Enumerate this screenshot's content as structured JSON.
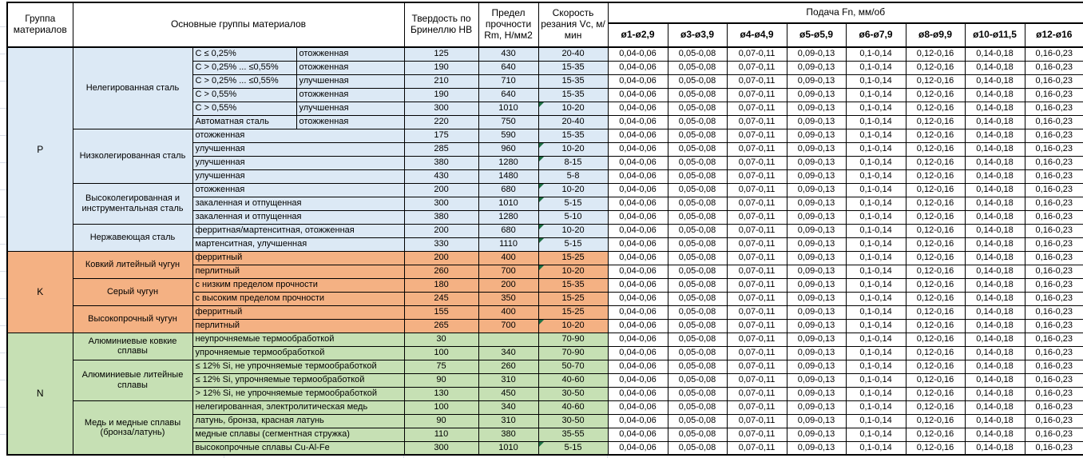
{
  "header": {
    "col_group": "Группа материалов",
    "col_main": "Основные группы материалов",
    "col_hb": "Твердость по Бринеллю НВ",
    "col_rm": "Предел прочности Rm, Н/мм2",
    "col_vc": "Скорость резания Vc, м/мин",
    "feed_title": "Подача Fn, мм/об",
    "feed_cols": [
      "ø1-ø2,9",
      "ø3-ø3,9",
      "ø4-ø4,9",
      "ø5-ø5,9",
      "ø6-ø7,9",
      "ø8-ø9,9",
      "ø10-ø11,5",
      "ø12-ø16"
    ]
  },
  "feed_values": [
    "0,04-0,06",
    "0,05-0,08",
    "0,07-0,11",
    "0,09-0,13",
    "0,1-0,14",
    "0,12-0,16",
    "0,14-0,18",
    "0,16-0,23"
  ],
  "colors": {
    "group_p": "#dce9f5",
    "group_k": "#f4b183",
    "group_n": "#c6e0b4",
    "marker_green": "#1e7145"
  },
  "groups": [
    {
      "letter": "P",
      "subgroups": [
        {
          "name": "Нелегированная сталь",
          "rows": [
            {
              "desc_a": "С ≤ 0,25%",
              "desc_b": "отожженная",
              "hb": "125",
              "rm": "430",
              "vc": "20-40",
              "marker": false
            },
            {
              "desc_a": "С > 0,25% ... ≤0,55%",
              "desc_b": "отожженная",
              "hb": "190",
              "rm": "640",
              "vc": "15-35",
              "marker": false
            },
            {
              "desc_a": "С > 0,25% ... ≤0,55%",
              "desc_b": "улучшенная",
              "hb": "210",
              "rm": "710",
              "vc": "15-35",
              "marker": false
            },
            {
              "desc_a": "С > 0,55%",
              "desc_b": "отожженная",
              "hb": "190",
              "rm": "640",
              "vc": "15-35",
              "marker": false
            },
            {
              "desc_a": "С > 0,55%",
              "desc_b": "улучшенная",
              "hb": "300",
              "rm": "1010",
              "vc": "10-20",
              "marker": true
            },
            {
              "desc_a": "Автоматная сталь",
              "desc_b": "отожженная",
              "hb": "220",
              "rm": "750",
              "vc": "20-40",
              "marker": false
            }
          ]
        },
        {
          "name": "Низколегированная сталь",
          "rows": [
            {
              "desc": "отожженная",
              "hb": "175",
              "rm": "590",
              "vc": "15-35",
              "marker": false
            },
            {
              "desc": "улучшенная",
              "hb": "285",
              "rm": "960",
              "vc": "10-20",
              "marker": true
            },
            {
              "desc": "улучшенная",
              "hb": "380",
              "rm": "1280",
              "vc": "8-15",
              "marker": true
            },
            {
              "desc": "улучшенная",
              "hb": "430",
              "rm": "1480",
              "vc": "5-8",
              "marker": false
            }
          ]
        },
        {
          "name": "Высоколегированная и инструментальная сталь",
          "rows": [
            {
              "desc": "отожженная",
              "hb": "200",
              "rm": "680",
              "vc": "10-20",
              "marker": true
            },
            {
              "desc": "закаленная и отпущенная",
              "hb": "300",
              "rm": "1010",
              "vc": "5-15",
              "marker": true
            },
            {
              "desc": "закаленная и отпущенная",
              "hb": "380",
              "rm": "1280",
              "vc": "5-10",
              "marker": false
            }
          ]
        },
        {
          "name": "Нержавеющая сталь",
          "rows": [
            {
              "desc": "ферритная/мартенситная, отожженная",
              "hb": "200",
              "rm": "680",
              "vc": "10-20",
              "marker": true
            },
            {
              "desc": "мартенситная, улучшенная",
              "hb": "330",
              "rm": "1110",
              "vc": "5-15",
              "marker": true
            }
          ]
        }
      ]
    },
    {
      "letter": "K",
      "subgroups": [
        {
          "name": "Ковкий литейный чугун",
          "rows": [
            {
              "desc": "ферритный",
              "hb": "200",
              "rm": "400",
              "vc": "15-25",
              "marker": false
            },
            {
              "desc": "перлитный",
              "hb": "260",
              "rm": "700",
              "vc": "10-20",
              "marker": true
            }
          ]
        },
        {
          "name": "Серый чугун",
          "rows": [
            {
              "desc": "с низким пределом прочности",
              "hb": "180",
              "rm": "200",
              "vc": "15-35",
              "marker": false
            },
            {
              "desc": "с высоким пределом прочности",
              "hb": "245",
              "rm": "350",
              "vc": "15-25",
              "marker": false
            }
          ]
        },
        {
          "name": "Высокопрочный чугун",
          "rows": [
            {
              "desc": "ферритный",
              "hb": "155",
              "rm": "400",
              "vc": "15-25",
              "marker": false
            },
            {
              "desc": "перлитный",
              "hb": "265",
              "rm": "700",
              "vc": "10-20",
              "marker": true
            }
          ]
        }
      ]
    },
    {
      "letter": "N",
      "subgroups": [
        {
          "name": "Алюминиевые ковкие сплавы",
          "rows": [
            {
              "desc": "неупрочняемые термообработкой",
              "hb": "30",
              "rm": "",
              "vc": "70-90",
              "marker": false
            },
            {
              "desc": "упрочняемые термообработкой",
              "hb": "100",
              "rm": "340",
              "vc": "70-90",
              "marker": false
            }
          ]
        },
        {
          "name": "Алюминиевые литейные сплавы",
          "rows": [
            {
              "desc": "≤ 12% Si, не упрочняемые термообработкой",
              "hb": "75",
              "rm": "260",
              "vc": "50-70",
              "marker": false
            },
            {
              "desc": "≤ 12% Si, упрочняемые термообработкой",
              "hb": "90",
              "rm": "310",
              "vc": "40-60",
              "marker": false
            },
            {
              "desc": "> 12% Si, не упрочняемые термообработкой",
              "hb": "130",
              "rm": "450",
              "vc": "30-50",
              "marker": false
            }
          ]
        },
        {
          "name": "Медь и медные сплавы (бронза/латунь)",
          "rows": [
            {
              "desc": "нелегированная, электролитическая медь",
              "hb": "100",
              "rm": "340",
              "vc": "40-60",
              "marker": false
            },
            {
              "desc": "латунь, бронза, красная латунь",
              "hb": "90",
              "rm": "310",
              "vc": "30-50",
              "marker": false
            },
            {
              "desc": "медные сплавы (сегментная стружка)",
              "hb": "110",
              "rm": "380",
              "vc": "35-55",
              "marker": false
            },
            {
              "desc": "высокопрочные сплавы Cu-Al-Fe",
              "hb": "300",
              "rm": "1010",
              "vc": "5-15",
              "marker": true
            }
          ]
        }
      ]
    }
  ]
}
